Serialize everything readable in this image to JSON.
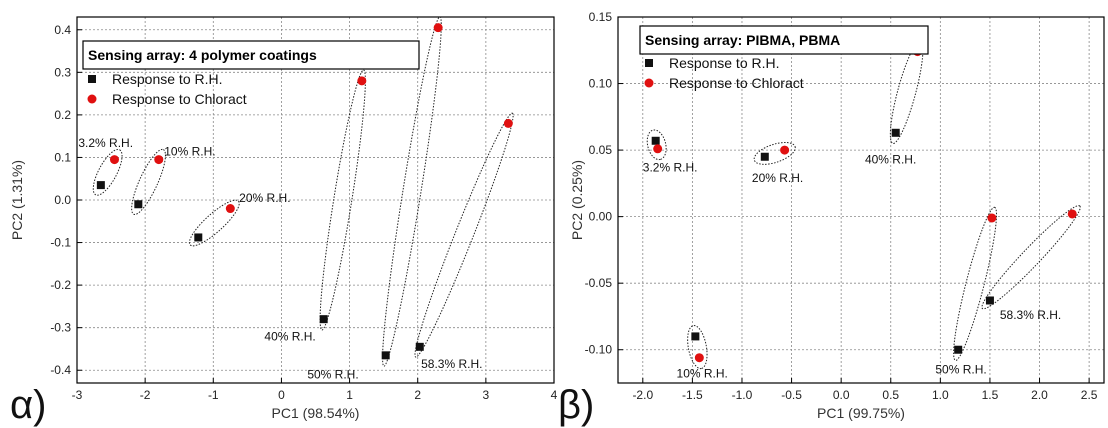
{
  "colors": {
    "rh": "#111111",
    "chloract": "#e01010"
  },
  "chart_data": [
    {
      "type": "scatter",
      "panel_label": "α)",
      "title": "Sensing array: 4 polymer coatings",
      "xlabel": "PC1 (98.54%)",
      "ylabel": "PC2 (1.31%)",
      "xlim": [
        -3,
        4
      ],
      "ylim": [
        -0.43,
        0.43
      ],
      "xticks": [
        -3,
        -2,
        -1,
        0,
        1,
        2,
        3,
        4
      ],
      "xtick_labels": [
        "-3",
        "-2",
        "-1",
        "0",
        "1",
        "2",
        "3",
        "4"
      ],
      "yticks": [
        -0.4,
        -0.3,
        -0.2,
        -0.1,
        0.0,
        0.1,
        0.2,
        0.3,
        0.4
      ],
      "ytick_labels": [
        "-0.4",
        "-0.3",
        "-0.2",
        "-0.1",
        "0.0",
        "0.1",
        "0.2",
        "0.3",
        "0.4"
      ],
      "grid": true,
      "legend": [
        {
          "label": "Response to R.H.",
          "marker": "square",
          "color_key": "rh"
        },
        {
          "label": "Response to Chloract",
          "marker": "circle",
          "color_key": "chloract"
        }
      ],
      "series": [
        {
          "name": "Response to R.H.",
          "marker": "square",
          "x": [
            -2.65,
            -2.1,
            -1.22,
            0.62,
            1.53,
            2.03
          ],
          "y": [
            0.035,
            -0.01,
            -0.088,
            -0.28,
            -0.365,
            -0.345
          ]
        },
        {
          "name": "Response to Chloract",
          "marker": "circle",
          "x": [
            -2.45,
            -1.8,
            -0.75,
            1.18,
            2.3,
            3.33
          ],
          "y": [
            0.095,
            0.095,
            -0.02,
            0.28,
            0.405,
            0.18
          ]
        }
      ],
      "clusters": [
        {
          "label": "3.2% R.H.",
          "label_xy": [
            -2.98,
            0.125
          ],
          "p1": [
            -2.65,
            0.035
          ],
          "p2": [
            -2.45,
            0.095
          ]
        },
        {
          "label": "10% R.H.",
          "label_xy": [
            -1.72,
            0.105
          ],
          "p1": [
            -2.1,
            -0.01
          ],
          "p2": [
            -1.8,
            0.095
          ]
        },
        {
          "label": "20% R.H.",
          "label_xy": [
            -0.62,
            -0.005
          ],
          "p1": [
            -1.22,
            -0.088
          ],
          "p2": [
            -0.75,
            -0.02
          ]
        },
        {
          "label": "40% R.H.",
          "label_xy": [
            -0.25,
            -0.33
          ],
          "p1": [
            0.62,
            -0.28
          ],
          "p2": [
            1.18,
            0.28
          ]
        },
        {
          "label": "50% R.H.",
          "label_xy": [
            0.38,
            -0.42
          ],
          "p1": [
            1.53,
            -0.365
          ],
          "p2": [
            2.3,
            0.405
          ]
        },
        {
          "label": "58.3% R.H.",
          "label_xy": [
            2.05,
            -0.395
          ],
          "p1": [
            2.03,
            -0.345
          ],
          "p2": [
            3.33,
            0.18
          ]
        }
      ]
    },
    {
      "type": "scatter",
      "panel_label": "β)",
      "title": "Sensing array: PIBMA, PBMA",
      "xlabel": "PC1 (99.75%)",
      "ylabel": "PC2 (0.25%)",
      "xlim": [
        -2.25,
        2.65
      ],
      "ylim": [
        -0.125,
        0.15
      ],
      "xticks": [
        -2.0,
        -1.5,
        -1.0,
        -0.5,
        0.0,
        0.5,
        1.0,
        1.5,
        2.0,
        2.5
      ],
      "xtick_labels": [
        "-2.0",
        "-1.5",
        "-1.0",
        "-0.5",
        "0.0",
        "0.5",
        "1.0",
        "1.5",
        "2.0",
        "2.5"
      ],
      "yticks": [
        -0.1,
        -0.05,
        0.0,
        0.05,
        0.1,
        0.15
      ],
      "ytick_labels": [
        "-0.10",
        "-0.05",
        "0.00",
        "0.05",
        "0.10",
        "0.15"
      ],
      "grid": true,
      "legend": [
        {
          "label": "Response to R.H.",
          "marker": "square",
          "color_key": "rh"
        },
        {
          "label": "Response to Chloract",
          "marker": "circle",
          "color_key": "chloract"
        }
      ],
      "series": [
        {
          "name": "Response to R.H.",
          "marker": "square",
          "x": [
            -1.87,
            -1.47,
            -0.77,
            0.55,
            1.18,
            1.5
          ],
          "y": [
            0.057,
            -0.09,
            0.045,
            0.063,
            -0.1,
            -0.063
          ]
        },
        {
          "name": "Response to Chloract",
          "marker": "circle",
          "x": [
            -1.85,
            -1.43,
            -0.57,
            0.77,
            1.52,
            2.33
          ],
          "y": [
            0.051,
            -0.106,
            0.05,
            0.124,
            -0.001,
            0.002
          ]
        }
      ],
      "clusters": [
        {
          "label": "3.2% R.H.",
          "label_xy": [
            -2.0,
            0.034
          ],
          "p1": [
            -1.87,
            0.057
          ],
          "p2": [
            -1.85,
            0.051
          ]
        },
        {
          "label": "10% R.H.",
          "label_xy": [
            -1.66,
            -0.121
          ],
          "p1": [
            -1.47,
            -0.09
          ],
          "p2": [
            -1.43,
            -0.106
          ]
        },
        {
          "label": "20% R.H.",
          "label_xy": [
            -0.9,
            0.026
          ],
          "p1": [
            -0.77,
            0.045
          ],
          "p2": [
            -0.57,
            0.05
          ]
        },
        {
          "label": "40% R.H.",
          "label_xy": [
            0.24,
            0.04
          ],
          "p1": [
            0.55,
            0.063
          ],
          "p2": [
            0.77,
            0.124
          ]
        },
        {
          "label": "50% R.H.",
          "label_xy": [
            0.95,
            -0.118
          ],
          "p1": [
            1.18,
            -0.1
          ],
          "p2": [
            1.52,
            -0.001
          ]
        },
        {
          "label": "58.3% R.H.",
          "label_xy": [
            1.6,
            -0.077
          ],
          "p1": [
            1.5,
            -0.063
          ],
          "p2": [
            2.33,
            0.002
          ]
        }
      ]
    }
  ]
}
